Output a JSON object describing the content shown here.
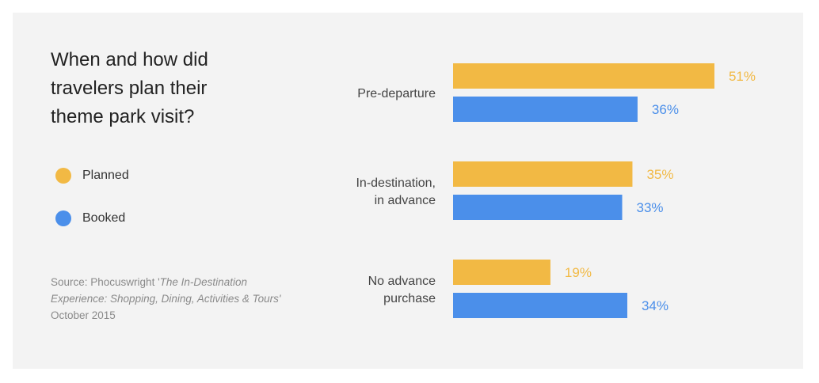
{
  "title": "When and how did travelers plan their theme park visit?",
  "legend": [
    {
      "label": "Planned",
      "color": "#F2B944"
    },
    {
      "label": "Booked",
      "color": "#4B8FEA"
    }
  ],
  "source": {
    "prefix": "Source: Phocuswright '",
    "italic": "The In-Destination Experience: Shopping, Dining, Activities & Tours'",
    "date": "October 2015"
  },
  "chart_data": {
    "type": "bar",
    "orientation": "horizontal",
    "categories": [
      [
        "Pre-departure"
      ],
      [
        "In-destination,",
        "in advance"
      ],
      [
        "No advance",
        "purchase"
      ]
    ],
    "series": [
      {
        "name": "Planned",
        "color": "#F2B944",
        "values": [
          51,
          35,
          19
        ],
        "labels": [
          "51%",
          "35%",
          "19%"
        ]
      },
      {
        "name": "Booked",
        "color": "#4B8FEA",
        "values": [
          36,
          33,
          34
        ],
        "labels": [
          "36%",
          "33%",
          "34%"
        ]
      }
    ],
    "unit": "%",
    "xlim": [
      0,
      60
    ],
    "grid": false
  }
}
